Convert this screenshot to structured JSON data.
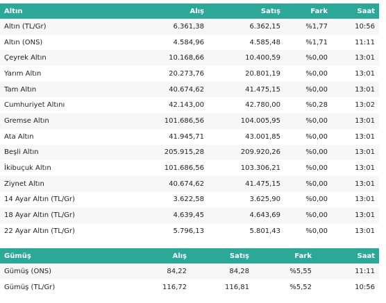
{
  "gold": {
    "headers": {
      "name": "Altın",
      "buy": "Alış",
      "sell": "Satış",
      "diff": "Fark",
      "time": "Saat"
    },
    "rows": [
      {
        "name": "Altın (TL/Gr)",
        "buy": "6.361,38",
        "sell": "6.362,15",
        "diff": "%1,77",
        "time": "10:56"
      },
      {
        "name": "Altın (ONS)",
        "buy": "4.584,96",
        "sell": "4.585,48",
        "diff": "%1,71",
        "time": "11:11"
      },
      {
        "name": "Çeyrek Altın",
        "buy": "10.168,66",
        "sell": "10.400,59",
        "diff": "%0,00",
        "time": "13:01"
      },
      {
        "name": "Yarım Altın",
        "buy": "20.273,76",
        "sell": "20.801,19",
        "diff": "%0,00",
        "time": "13:01"
      },
      {
        "name": "Tam Altın",
        "buy": "40.674,62",
        "sell": "41.475,15",
        "diff": "%0,00",
        "time": "13:01"
      },
      {
        "name": "Cumhuriyet Altını",
        "buy": "42.143,00",
        "sell": "42.780,00",
        "diff": "%0,28",
        "time": "13:02"
      },
      {
        "name": "Gremse Altın",
        "buy": "101.686,56",
        "sell": "104.005,95",
        "diff": "%0,00",
        "time": "13:01"
      },
      {
        "name": "Ata Altın",
        "buy": "41.945,71",
        "sell": "43.001,85",
        "diff": "%0,00",
        "time": "13:01"
      },
      {
        "name": "Beşli Altın",
        "buy": "205.915,28",
        "sell": "209.920,26",
        "diff": "%0,00",
        "time": "13:01"
      },
      {
        "name": "İkibuçuk Altın",
        "buy": "101.686,56",
        "sell": "103.306,21",
        "diff": "%0,00",
        "time": "13:01"
      },
      {
        "name": "Ziynet Altın",
        "buy": "40.674,62",
        "sell": "41.475,15",
        "diff": "%0,00",
        "time": "13:01"
      },
      {
        "name": "14 Ayar Altın (TL/Gr)",
        "buy": "3.622,58",
        "sell": "3.625,90",
        "diff": "%0,00",
        "time": "13:01"
      },
      {
        "name": "18 Ayar Altın (TL/Gr)",
        "buy": "4.639,45",
        "sell": "4.643,69",
        "diff": "%0,00",
        "time": "13:01"
      },
      {
        "name": "22 Ayar Altın (TL/Gr)",
        "buy": "5.796,13",
        "sell": "5.801,43",
        "diff": "%0,00",
        "time": "13:01"
      }
    ]
  },
  "silver": {
    "headers": {
      "name": "Gümüş",
      "buy": "Alış",
      "sell": "Satış",
      "diff": "Fark",
      "time": "Saat"
    },
    "rows": [
      {
        "name": "Gümüş (ONS)",
        "buy": "84,22",
        "sell": "84,28",
        "diff": "%5,55",
        "time": "11:11"
      },
      {
        "name": "Gümüş (TL/Gr)",
        "buy": "116,72",
        "sell": "116,81",
        "diff": "%5,52",
        "time": "10:56"
      }
    ]
  },
  "colors": {
    "header_bg": "#2ba898",
    "header_text": "#ffffff",
    "row_alt": "#f7f7f7"
  }
}
